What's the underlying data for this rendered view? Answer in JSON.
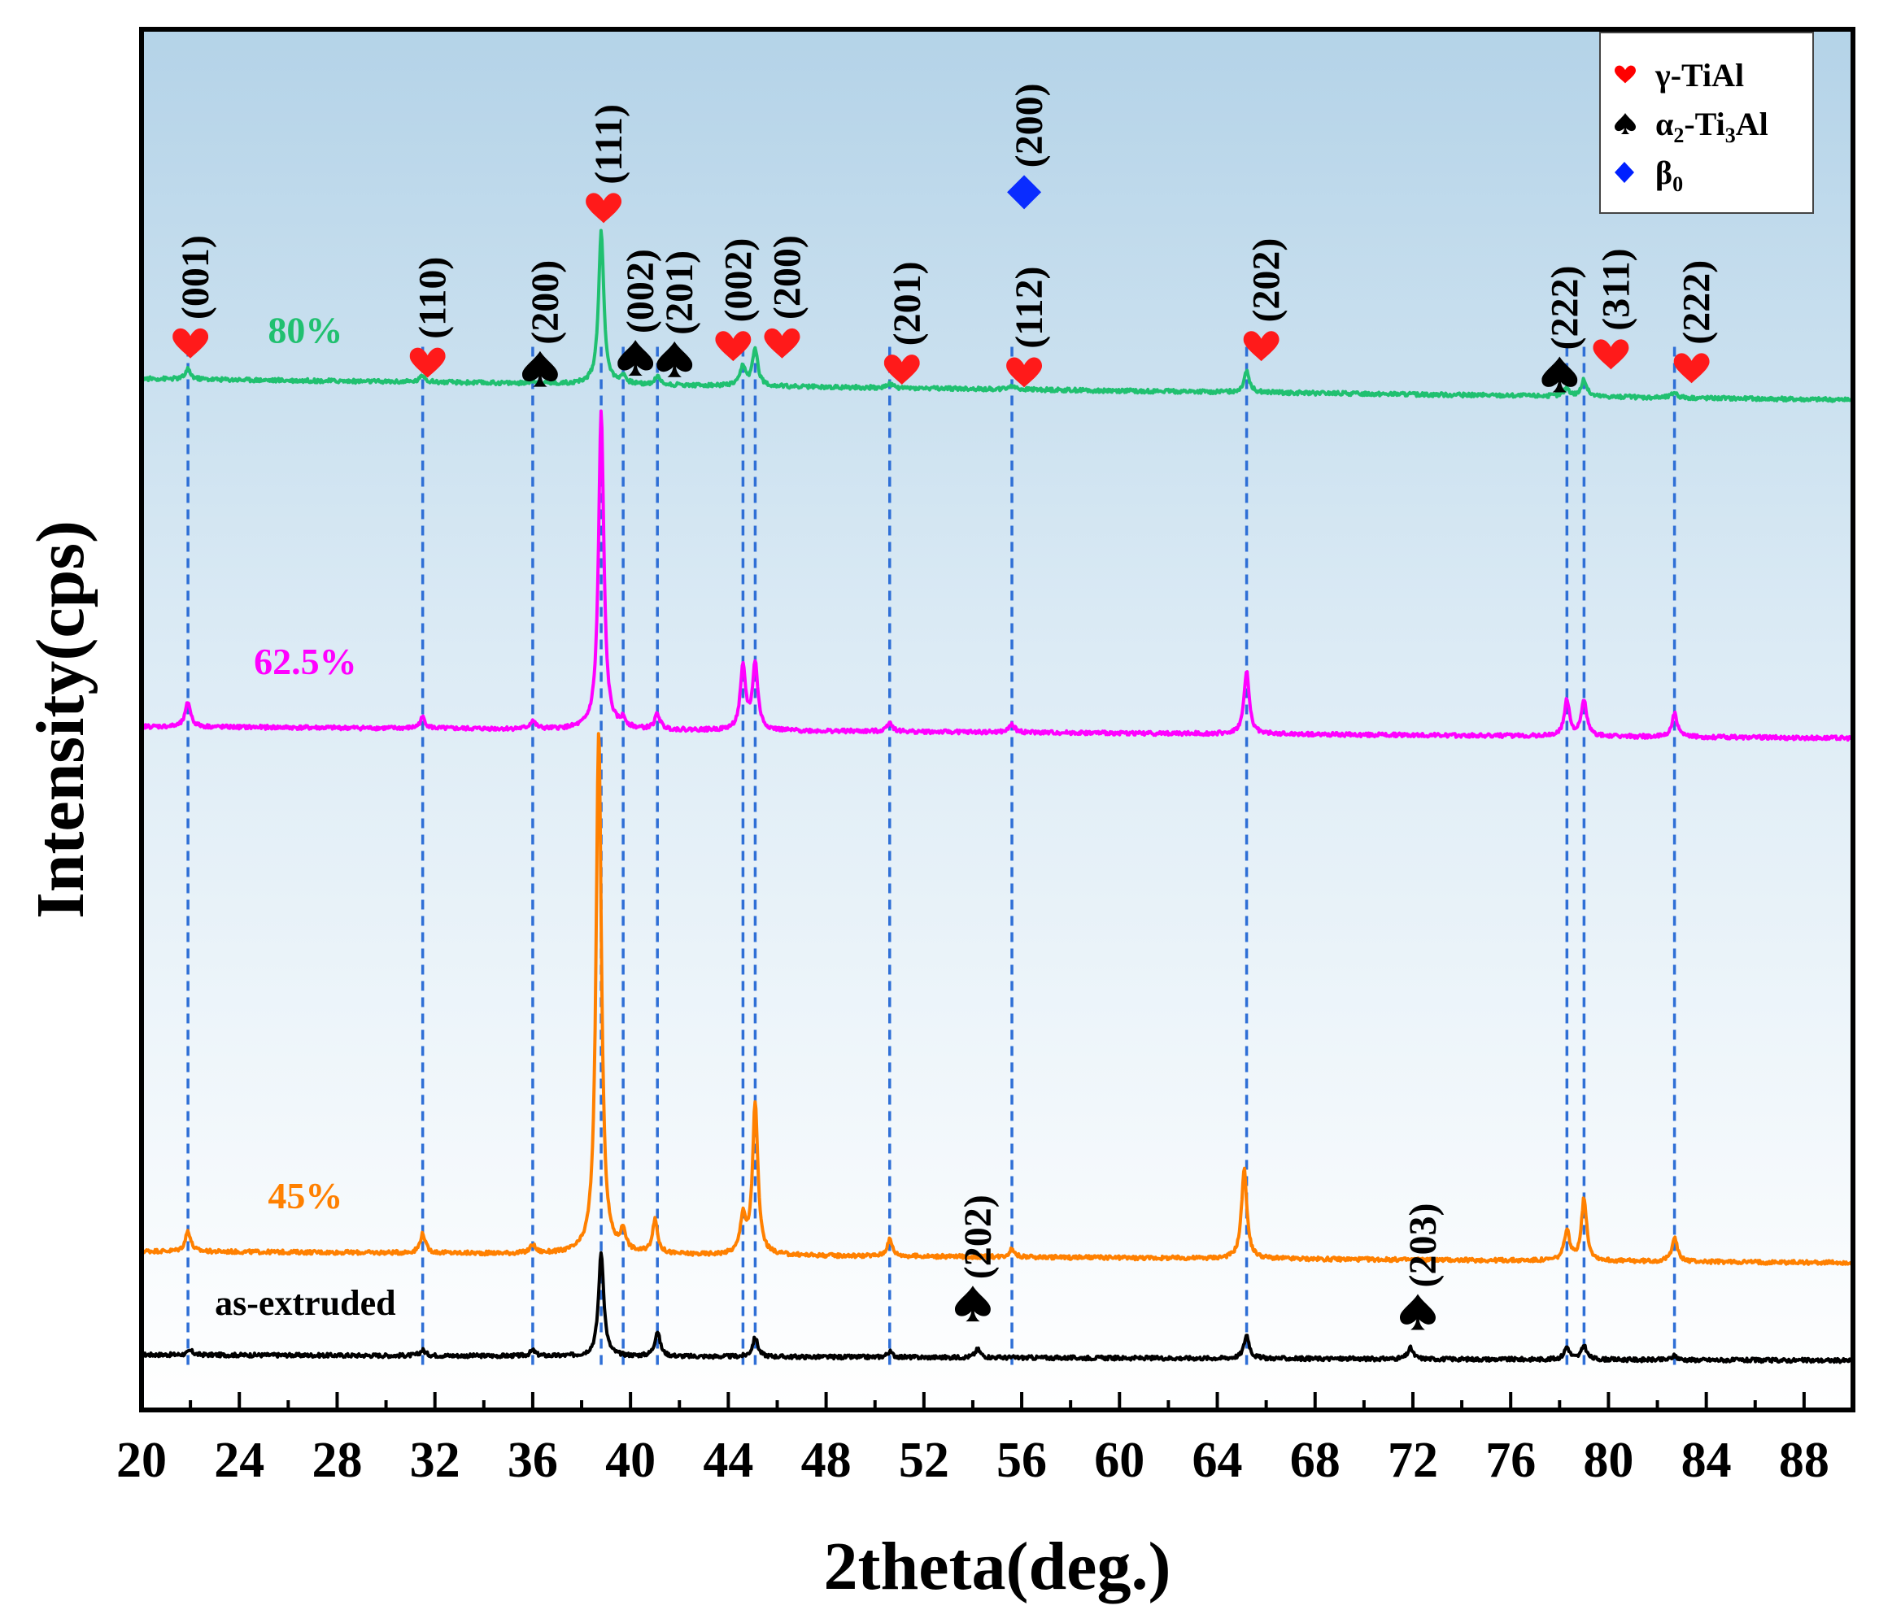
{
  "chart_data": {
    "type": "line",
    "title": "",
    "xlabel": "2theta(deg.)",
    "ylabel": "Intensity(cps)",
    "xlim": [
      20,
      90
    ],
    "ylim": [
      0,
      100
    ],
    "xticks": [
      20,
      24,
      28,
      32,
      36,
      40,
      44,
      48,
      52,
      56,
      60,
      64,
      68,
      72,
      76,
      80,
      84,
      88
    ],
    "x_minor_step": 2,
    "yticks_shown": false,
    "grid": false,
    "background": "gradient light blue (top) to white (bottom)",
    "reference_lines": [
      21.9,
      31.5,
      36.0,
      38.8,
      39.7,
      41.1,
      44.6,
      45.1,
      50.6,
      55.6,
      65.2,
      78.3,
      79.0,
      82.7
    ],
    "series": [
      {
        "name": "as-extruded",
        "color": "#000000",
        "baseline": 4.0,
        "slope": -0.006,
        "peaks": [
          [
            22.0,
            0.3
          ],
          [
            31.5,
            0.4
          ],
          [
            36.0,
            0.4
          ],
          [
            38.8,
            7.5
          ],
          [
            41.1,
            1.8
          ],
          [
            45.1,
            1.4
          ],
          [
            50.6,
            0.4
          ],
          [
            54.2,
            0.6
          ],
          [
            65.2,
            1.7
          ],
          [
            71.9,
            0.8
          ],
          [
            78.3,
            0.9
          ],
          [
            79.0,
            1.0
          ],
          [
            82.7,
            0.3
          ]
        ]
      },
      {
        "name": "45%",
        "color": "#ff8000",
        "baseline": 11.5,
        "slope": -0.012,
        "peaks": [
          [
            21.9,
            1.5
          ],
          [
            31.5,
            1.4
          ],
          [
            36.0,
            0.6
          ],
          [
            38.7,
            38.0
          ],
          [
            39.7,
            1.5
          ],
          [
            41.0,
            2.4
          ],
          [
            44.6,
            2.7
          ],
          [
            45.1,
            11.0
          ],
          [
            50.6,
            1.2
          ],
          [
            55.6,
            0.6
          ],
          [
            65.1,
            6.5
          ],
          [
            78.3,
            2.2
          ],
          [
            79.0,
            4.5
          ],
          [
            82.7,
            1.8
          ]
        ]
      },
      {
        "name": "62.5%",
        "color": "#ff00ff",
        "baseline": 49.5,
        "slope": -0.012,
        "peaks": [
          [
            21.9,
            1.8
          ],
          [
            31.5,
            0.8
          ],
          [
            36.0,
            0.6
          ],
          [
            38.8,
            23.0
          ],
          [
            39.7,
            0.6
          ],
          [
            41.1,
            1.1
          ],
          [
            44.6,
            4.5
          ],
          [
            45.1,
            4.8
          ],
          [
            50.6,
            0.7
          ],
          [
            55.6,
            0.6
          ],
          [
            65.2,
            4.5
          ],
          [
            78.3,
            2.6
          ],
          [
            79.0,
            2.6
          ],
          [
            82.7,
            1.7
          ]
        ]
      },
      {
        "name": "80%",
        "color": "#20c070",
        "baseline": 74.7,
        "slope": -0.022,
        "peaks": [
          [
            21.9,
            0.7
          ],
          [
            31.5,
            0.5
          ],
          [
            36.0,
            0.2
          ],
          [
            38.8,
            11.0
          ],
          [
            39.7,
            0.6
          ],
          [
            41.1,
            0.6
          ],
          [
            44.6,
            1.4
          ],
          [
            45.1,
            2.7
          ],
          [
            50.6,
            0.3
          ],
          [
            55.6,
            0.3
          ],
          [
            65.2,
            1.6
          ],
          [
            78.3,
            0.6
          ],
          [
            79.0,
            1.2
          ],
          [
            82.7,
            0.4
          ]
        ]
      }
    ],
    "series_labels": [
      {
        "text": "80%",
        "x": 26.7,
        "y": 77.3
      },
      {
        "text": "62.5%",
        "x": 26.7,
        "y": 53.3
      },
      {
        "text": "45%",
        "x": 26.7,
        "y": 14.6
      },
      {
        "text": "as-extruded",
        "x": 26.7,
        "y": 6.9
      }
    ],
    "annotations": [
      {
        "label": "(001)",
        "marker": "heart",
        "x": 22.0,
        "y": 77.2
      },
      {
        "label": "(110)",
        "marker": "heart",
        "x": 31.7,
        "y": 75.8
      },
      {
        "label": "(200)",
        "marker": "spade",
        "x": 36.3,
        "y": 75.4
      },
      {
        "label": "(111)",
        "marker": "heart",
        "x": 38.9,
        "y": 87.0
      },
      {
        "label": "(002)",
        "marker": "spade",
        "x": 40.2,
        "y": 76.2
      },
      {
        "label": "(201)",
        "marker": "spade",
        "x": 41.8,
        "y": 76.1
      },
      {
        "label": "(002)",
        "marker": "heart",
        "x": 44.2,
        "y": 77.0
      },
      {
        "label": "(200)",
        "marker": "heart",
        "x": 46.2,
        "y": 77.2
      },
      {
        "label": "(201)",
        "marker": "heart",
        "x": 51.1,
        "y": 75.3
      },
      {
        "label": "(112)",
        "marker": "heart",
        "x": 56.1,
        "y": 75.1
      },
      {
        "label": "(200)",
        "marker": "diamond",
        "x": 56.1,
        "y": 88.2
      },
      {
        "label": "(202)",
        "marker": "heart",
        "x": 65.8,
        "y": 77.0
      },
      {
        "label": "(222)",
        "marker": "spade",
        "x": 78.0,
        "y": 75.0
      },
      {
        "label": "(311)",
        "marker": "heart",
        "x": 80.1,
        "y": 76.4
      },
      {
        "label": "(222)",
        "marker": "heart",
        "x": 83.4,
        "y": 75.4
      },
      {
        "label": "(202)",
        "marker": "spade",
        "x": 54.0,
        "y": 7.7
      },
      {
        "label": "(203)",
        "marker": "spade",
        "x": 72.2,
        "y": 7.1
      }
    ],
    "legend": {
      "position": "top-right",
      "entries": [
        {
          "marker": "heart",
          "text": "γ-TiAl",
          "color": "#ff0000"
        },
        {
          "marker": "spade",
          "text": "α",
          "sub": "2",
          "rest": "-Ti",
          "sub2": "3",
          "rest2": "Al",
          "color": "#000000"
        },
        {
          "marker": "diamond",
          "text": "β",
          "sub": "0",
          "color": "#0020ff"
        }
      ]
    },
    "marker_colors": {
      "heart": "#ff1a1a",
      "spade": "#000000",
      "diamond": "#0a2cff"
    },
    "reference_line_color": "#2f6fd6"
  }
}
